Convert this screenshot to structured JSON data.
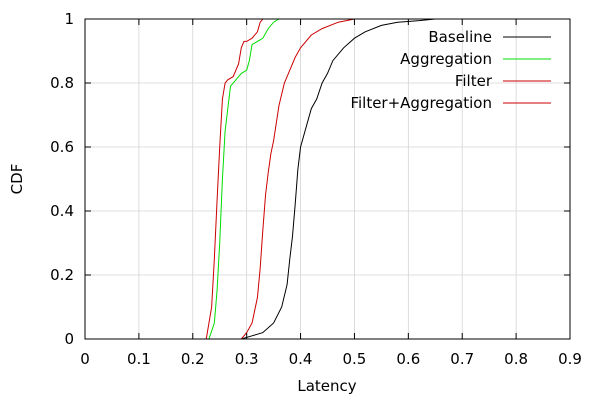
{
  "chart_data": {
    "type": "line",
    "xlabel": "Latency",
    "ylabel": "CDF",
    "xlim": [
      0,
      0.9
    ],
    "ylim": [
      0,
      1
    ],
    "xticks": [
      "0",
      "0.1",
      "0.2",
      "0.3",
      "0.4",
      "0.5",
      "0.6",
      "0.7",
      "0.8",
      "0.9"
    ],
    "yticks": [
      "0",
      "0.2",
      "0.4",
      "0.6",
      "0.8",
      "1"
    ],
    "grid": true,
    "legend_position": "top-right",
    "series": [
      {
        "name": "Baseline",
        "color": "#000000",
        "x": [
          0.29,
          0.31,
          0.33,
          0.35,
          0.365,
          0.375,
          0.38,
          0.385,
          0.39,
          0.395,
          0.4,
          0.41,
          0.42,
          0.43,
          0.44,
          0.45,
          0.46,
          0.48,
          0.5,
          0.52,
          0.55,
          0.58,
          0.62,
          0.65
        ],
        "y": [
          0.0,
          0.01,
          0.02,
          0.05,
          0.1,
          0.17,
          0.25,
          0.32,
          0.42,
          0.53,
          0.6,
          0.66,
          0.72,
          0.75,
          0.8,
          0.83,
          0.87,
          0.91,
          0.94,
          0.96,
          0.98,
          0.99,
          0.995,
          1.0
        ]
      },
      {
        "name": "Aggregation",
        "color": "#00dd00",
        "x": [
          0.23,
          0.24,
          0.245,
          0.25,
          0.255,
          0.26,
          0.265,
          0.27,
          0.28,
          0.29,
          0.3,
          0.305,
          0.31,
          0.32,
          0.33,
          0.34,
          0.35,
          0.36,
          0.38
        ],
        "y": [
          0.0,
          0.05,
          0.15,
          0.3,
          0.5,
          0.65,
          0.72,
          0.79,
          0.81,
          0.83,
          0.84,
          0.87,
          0.92,
          0.93,
          0.94,
          0.97,
          0.99,
          1.0,
          1.0
        ]
      },
      {
        "name": "Filter",
        "color": "#cc0000",
        "x": [
          0.29,
          0.3,
          0.31,
          0.32,
          0.325,
          0.33,
          0.335,
          0.34,
          0.345,
          0.35,
          0.36,
          0.37,
          0.38,
          0.39,
          0.4,
          0.42,
          0.44,
          0.47,
          0.5,
          0.55
        ],
        "y": [
          0.0,
          0.02,
          0.05,
          0.13,
          0.22,
          0.34,
          0.45,
          0.52,
          0.58,
          0.62,
          0.73,
          0.8,
          0.84,
          0.88,
          0.91,
          0.95,
          0.97,
          0.99,
          1.0,
          1.0
        ]
      },
      {
        "name": "Filter+Aggregation",
        "color": "#cc0000",
        "x": [
          0.225,
          0.235,
          0.24,
          0.245,
          0.25,
          0.255,
          0.26,
          0.265,
          0.275,
          0.285,
          0.29,
          0.295,
          0.3,
          0.31,
          0.32,
          0.325,
          0.33,
          0.34,
          0.36
        ],
        "y": [
          0.0,
          0.1,
          0.25,
          0.43,
          0.6,
          0.75,
          0.8,
          0.81,
          0.82,
          0.86,
          0.91,
          0.93,
          0.93,
          0.94,
          0.96,
          0.99,
          1.0,
          1.0,
          1.0
        ]
      }
    ]
  }
}
